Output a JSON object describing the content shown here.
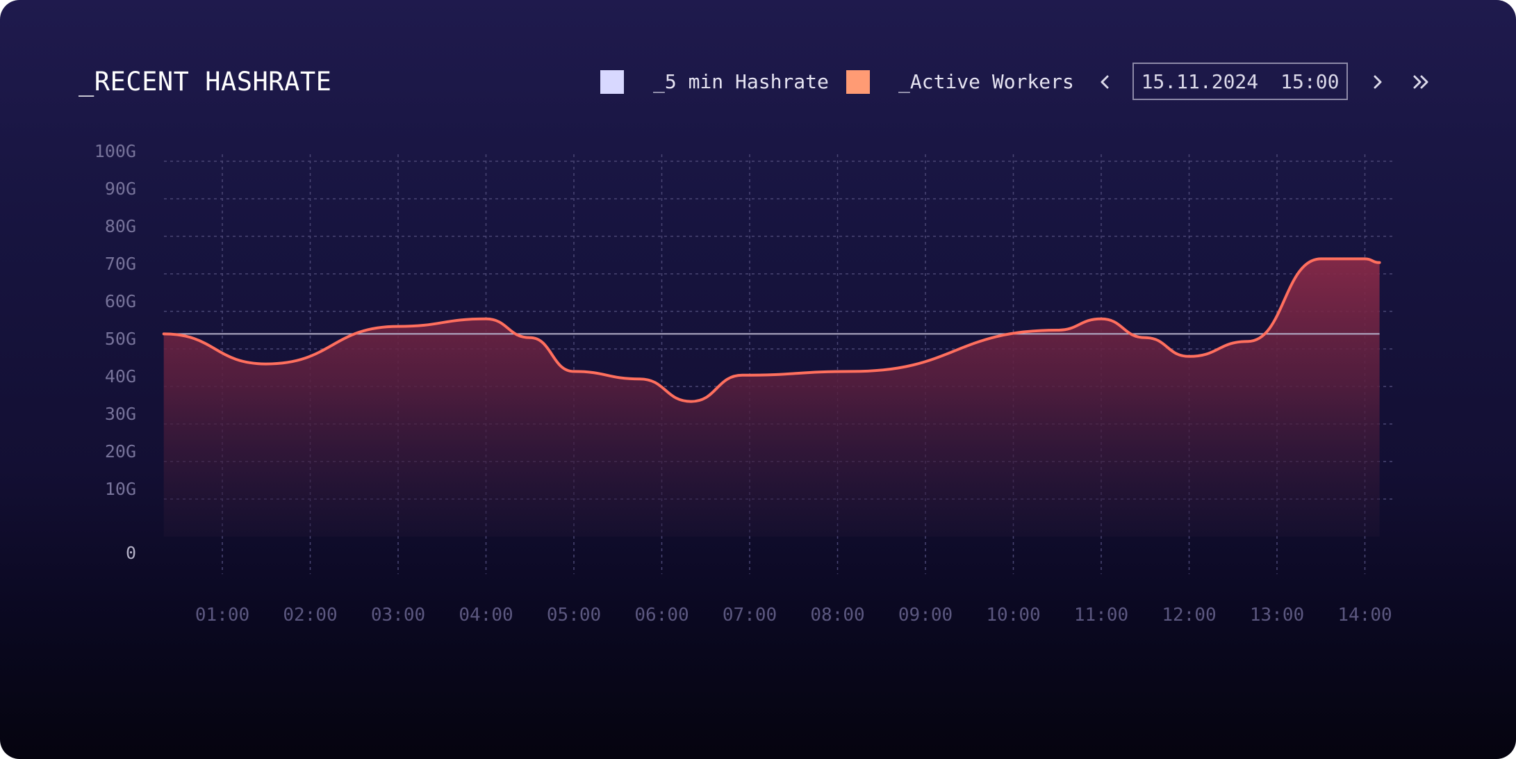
{
  "header": {
    "title": "_RECENT HASHRATE",
    "date": "15.11.2024",
    "time": "15:00"
  },
  "colors": {
    "hashrate_series": "#d8d8ff",
    "workers_series": "#ff9b74",
    "line": "#ff6f5e",
    "reference_line": "#b7b2cc"
  },
  "icons": {
    "prev": "chevron-left-icon",
    "next": "chevron-right-icon",
    "last": "chevron-double-right-icon"
  },
  "chart_data": {
    "type": "area",
    "legend": [
      "_5 min Hashrate",
      "_Active Workers"
    ],
    "legend_placement": "top-right",
    "grid": true,
    "y_ticks": [
      "0",
      "10G",
      "20G",
      "30G",
      "40G",
      "50G",
      "60G",
      "70G",
      "80G",
      "90G",
      "100G"
    ],
    "y_tick_values": [
      0,
      10,
      20,
      30,
      40,
      50,
      60,
      70,
      80,
      90,
      100
    ],
    "ylim": [
      0,
      100
    ],
    "x_ticks": [
      "01:00",
      "02:00",
      "03:00",
      "04:00",
      "05:00",
      "06:00",
      "07:00",
      "08:00",
      "09:00",
      "10:00",
      "11:00",
      "12:00",
      "13:00",
      "14:00"
    ],
    "xlim": [
      "00:20",
      "14:20"
    ],
    "series": [
      {
        "name": "_5 min Hashrate",
        "x": [
          "00:20",
          "01:30",
          "03:00",
          "04:00",
          "04:30",
          "05:00",
          "05:45",
          "06:20",
          "06:55",
          "08:10",
          "10:30",
          "11:00",
          "11:30",
          "12:00",
          "12:40",
          "13:30",
          "14:00",
          "14:10"
        ],
        "values": [
          54,
          46,
          56,
          58,
          53,
          44,
          42,
          36,
          43,
          44,
          55,
          58,
          53,
          48,
          52,
          74,
          74,
          73
        ]
      },
      {
        "name": "reference",
        "values": [
          54
        ]
      }
    ]
  }
}
